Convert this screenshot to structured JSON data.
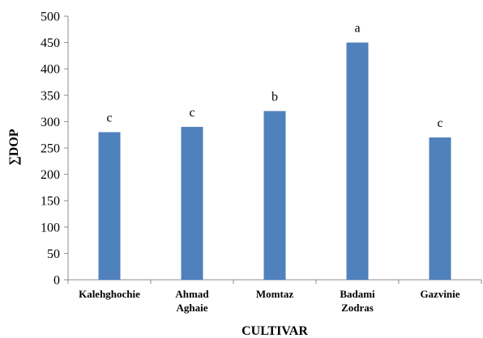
{
  "chart_data": {
    "type": "bar",
    "title": "",
    "xlabel": "CULTIVAR",
    "ylabel": "∑DOP",
    "ylim": [
      0,
      500
    ],
    "yticks": [
      0,
      50,
      100,
      150,
      200,
      250,
      300,
      350,
      400,
      450,
      500
    ],
    "grid": false,
    "legend": "none",
    "bar_color": "#4f81bd",
    "categories": [
      [
        "Kalehghochie"
      ],
      [
        "Ahmad",
        "Aghaie"
      ],
      [
        "Momtaz"
      ],
      [
        "Badami",
        "Zodras"
      ],
      [
        "Gazvinie"
      ]
    ],
    "values": [
      280,
      290,
      320,
      450,
      270
    ],
    "data_labels": [
      "c",
      "c",
      "b",
      "a",
      "c"
    ]
  }
}
